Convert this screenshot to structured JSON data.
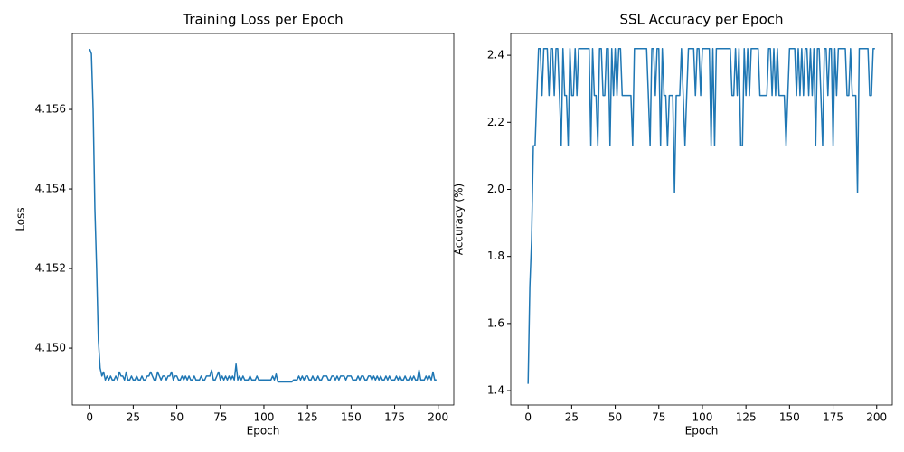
{
  "chart_data": [
    {
      "type": "line",
      "title": "Training Loss per Epoch",
      "x_label": "Epoch",
      "y_label": "Loss",
      "x": [
        0,
        1,
        2,
        3,
        4,
        5,
        6,
        7,
        8,
        9,
        10,
        11,
        12,
        13,
        14,
        15,
        16,
        17,
        18,
        19,
        20,
        21,
        22,
        23,
        24,
        25,
        26,
        27,
        28,
        29,
        30,
        31,
        32,
        33,
        34,
        35,
        36,
        37,
        38,
        39,
        40,
        41,
        42,
        43,
        44,
        45,
        46,
        47,
        48,
        49,
        50,
        51,
        52,
        53,
        54,
        55,
        56,
        57,
        58,
        59,
        60,
        61,
        62,
        63,
        64,
        65,
        66,
        67,
        68,
        69,
        70,
        71,
        72,
        73,
        74,
        75,
        76,
        77,
        78,
        79,
        80,
        81,
        82,
        83,
        84,
        85,
        86,
        87,
        88,
        89,
        90,
        91,
        92,
        93,
        94,
        95,
        96,
        97,
        98,
        99,
        100,
        101,
        102,
        103,
        104,
        105,
        106,
        107,
        108,
        109,
        110,
        111,
        112,
        113,
        114,
        115,
        116,
        117,
        118,
        119,
        120,
        121,
        122,
        123,
        124,
        125,
        126,
        127,
        128,
        129,
        130,
        131,
        132,
        133,
        134,
        135,
        136,
        137,
        138,
        139,
        140,
        141,
        142,
        143,
        144,
        145,
        146,
        147,
        148,
        149,
        150,
        151,
        152,
        153,
        154,
        155,
        156,
        157,
        158,
        159,
        160,
        161,
        162,
        163,
        164,
        165,
        166,
        167,
        168,
        169,
        170,
        171,
        172,
        173,
        174,
        175,
        176,
        177,
        178,
        179,
        180,
        181,
        182,
        183,
        184,
        185,
        186,
        187,
        188,
        189,
        190,
        191,
        192,
        193,
        194,
        195,
        196,
        197,
        198,
        199
      ],
      "series": [
        {
          "name": "Loss",
          "color": "#1f77b4",
          "values": [
            4.15752,
            4.1574,
            4.156,
            4.1535,
            4.152,
            4.1502,
            4.1495,
            4.1493,
            4.1494,
            4.1492,
            4.1493,
            4.1492,
            4.1493,
            4.1492,
            4.1492,
            4.1493,
            4.1492,
            4.1494,
            4.1493,
            4.1493,
            4.1492,
            4.1494,
            4.1492,
            4.1492,
            4.1493,
            4.1492,
            4.1492,
            4.1493,
            4.1492,
            4.1492,
            4.1493,
            4.1492,
            4.1492,
            4.1493,
            4.1493,
            4.1494,
            4.1493,
            4.1492,
            4.1492,
            4.1494,
            4.1493,
            4.1492,
            4.1493,
            4.1493,
            4.1492,
            4.1493,
            4.1493,
            4.1494,
            4.1492,
            4.1493,
            4.1493,
            4.1492,
            4.1492,
            4.1493,
            4.1492,
            4.1493,
            4.1492,
            4.1493,
            4.1492,
            4.1492,
            4.1493,
            4.1492,
            4.1492,
            4.1492,
            4.1493,
            4.1492,
            4.1492,
            4.1493,
            4.1493,
            4.1493,
            4.14945,
            4.1492,
            4.1492,
            4.1493,
            4.1494,
            4.1492,
            4.1493,
            4.1492,
            4.1493,
            4.1492,
            4.1493,
            4.1492,
            4.1493,
            4.1492,
            4.1496,
            4.1492,
            4.1493,
            4.1492,
            4.1493,
            4.1492,
            4.1492,
            4.1492,
            4.1493,
            4.1492,
            4.1492,
            4.1492,
            4.1493,
            4.1492,
            4.1492,
            4.1492,
            4.1492,
            4.1492,
            4.1492,
            4.1492,
            4.1492,
            4.1493,
            4.1492,
            4.14935,
            4.14915,
            4.14915,
            4.14915,
            4.14915,
            4.14915,
            4.14915,
            4.14915,
            4.14915,
            4.14915,
            4.1492,
            4.1492,
            4.1492,
            4.1493,
            4.1492,
            4.1493,
            4.1492,
            4.1493,
            4.1493,
            4.1492,
            4.1492,
            4.1493,
            4.1492,
            4.1492,
            4.1493,
            4.1492,
            4.1492,
            4.1493,
            4.1493,
            4.1493,
            4.1492,
            4.1492,
            4.1493,
            4.1493,
            4.1492,
            4.1493,
            4.1492,
            4.1493,
            4.1493,
            4.1493,
            4.1492,
            4.1493,
            4.1493,
            4.1493,
            4.1492,
            4.1492,
            4.1492,
            4.1493,
            4.1492,
            4.1493,
            4.1493,
            4.1492,
            4.1492,
            4.1493,
            4.1493,
            4.1492,
            4.1493,
            4.1492,
            4.1493,
            4.1492,
            4.1493,
            4.1492,
            4.1492,
            4.1493,
            4.1492,
            4.1493,
            4.1492,
            4.1492,
            4.1492,
            4.1493,
            4.1492,
            4.1493,
            4.1492,
            4.1492,
            4.1493,
            4.1492,
            4.1492,
            4.1493,
            4.1492,
            4.1493,
            4.1492,
            4.1492,
            4.14945,
            4.1492,
            4.1492,
            4.1492,
            4.1493,
            4.1492,
            4.1493,
            4.1492,
            4.1494,
            4.1492,
            4.1492
          ]
        }
      ],
      "xlim": [
        -9.95,
        208.95
      ],
      "xticks": [
        0,
        25,
        50,
        75,
        100,
        125,
        150,
        175,
        200
      ],
      "ylim": [
        4.14857,
        4.15791
      ],
      "yticks": [
        {
          "value": 4.15,
          "label": "4.150"
        },
        4.152,
        4.154,
        4.156
      ],
      "grid": false
    },
    {
      "type": "line",
      "title": "SSL Accuracy per Epoch",
      "x_label": "Epoch",
      "y_label": "Accuracy (%)",
      "x": [
        0,
        1,
        2,
        3,
        4,
        5,
        6,
        7,
        8,
        9,
        10,
        11,
        12,
        13,
        14,
        15,
        16,
        17,
        18,
        19,
        20,
        21,
        22,
        23,
        24,
        25,
        26,
        27,
        28,
        29,
        30,
        31,
        32,
        33,
        34,
        35,
        36,
        37,
        38,
        39,
        40,
        41,
        42,
        43,
        44,
        45,
        46,
        47,
        48,
        49,
        50,
        51,
        52,
        53,
        54,
        55,
        56,
        57,
        58,
        59,
        60,
        61,
        62,
        63,
        64,
        65,
        66,
        67,
        68,
        69,
        70,
        71,
        72,
        73,
        74,
        75,
        76,
        77,
        78,
        79,
        80,
        81,
        82,
        83,
        84,
        85,
        86,
        87,
        88,
        89,
        90,
        91,
        92,
        93,
        94,
        95,
        96,
        97,
        98,
        99,
        100,
        101,
        102,
        103,
        104,
        105,
        106,
        107,
        108,
        109,
        110,
        111,
        112,
        113,
        114,
        115,
        116,
        117,
        118,
        119,
        120,
        121,
        122,
        123,
        124,
        125,
        126,
        127,
        128,
        129,
        130,
        131,
        132,
        133,
        134,
        135,
        136,
        137,
        138,
        139,
        140,
        141,
        142,
        143,
        144,
        145,
        146,
        147,
        148,
        149,
        150,
        151,
        152,
        153,
        154,
        155,
        156,
        157,
        158,
        159,
        160,
        161,
        162,
        163,
        164,
        165,
        166,
        167,
        168,
        169,
        170,
        171,
        172,
        173,
        174,
        175,
        176,
        177,
        178,
        179,
        180,
        181,
        182,
        183,
        184,
        185,
        186,
        187,
        188,
        189,
        190,
        191,
        192,
        193,
        194,
        195,
        196,
        197,
        198,
        199
      ],
      "series": [
        {
          "name": "Accuracy",
          "color": "#1f77b4",
          "values": [
            1.42,
            1.71,
            1.85,
            2.13,
            2.13,
            2.28,
            2.42,
            2.42,
            2.28,
            2.42,
            2.42,
            2.42,
            2.28,
            2.42,
            2.42,
            2.28,
            2.42,
            2.42,
            2.28,
            2.13,
            2.42,
            2.28,
            2.28,
            2.13,
            2.42,
            2.28,
            2.28,
            2.42,
            2.28,
            2.42,
            2.42,
            2.42,
            2.42,
            2.42,
            2.42,
            2.42,
            2.13,
            2.42,
            2.28,
            2.28,
            2.13,
            2.42,
            2.42,
            2.28,
            2.28,
            2.42,
            2.42,
            2.13,
            2.42,
            2.28,
            2.42,
            2.28,
            2.42,
            2.42,
            2.28,
            2.28,
            2.28,
            2.28,
            2.28,
            2.28,
            2.13,
            2.42,
            2.42,
            2.42,
            2.42,
            2.42,
            2.42,
            2.42,
            2.42,
            2.28,
            2.13,
            2.42,
            2.42,
            2.28,
            2.42,
            2.42,
            2.13,
            2.42,
            2.28,
            2.28,
            2.13,
            2.28,
            2.28,
            2.28,
            1.99,
            2.28,
            2.28,
            2.28,
            2.42,
            2.28,
            2.13,
            2.28,
            2.42,
            2.42,
            2.42,
            2.42,
            2.28,
            2.42,
            2.42,
            2.28,
            2.42,
            2.42,
            2.42,
            2.42,
            2.42,
            2.13,
            2.42,
            2.13,
            2.42,
            2.42,
            2.42,
            2.42,
            2.42,
            2.42,
            2.42,
            2.42,
            2.42,
            2.28,
            2.28,
            2.42,
            2.28,
            2.42,
            2.13,
            2.13,
            2.42,
            2.28,
            2.42,
            2.28,
            2.42,
            2.42,
            2.42,
            2.42,
            2.42,
            2.28,
            2.28,
            2.28,
            2.28,
            2.28,
            2.42,
            2.42,
            2.28,
            2.42,
            2.28,
            2.42,
            2.28,
            2.28,
            2.28,
            2.28,
            2.13,
            2.28,
            2.42,
            2.42,
            2.42,
            2.42,
            2.28,
            2.42,
            2.28,
            2.42,
            2.28,
            2.42,
            2.42,
            2.28,
            2.42,
            2.28,
            2.42,
            2.13,
            2.42,
            2.42,
            2.28,
            2.13,
            2.42,
            2.42,
            2.28,
            2.42,
            2.42,
            2.13,
            2.42,
            2.28,
            2.42,
            2.42,
            2.42,
            2.42,
            2.42,
            2.28,
            2.28,
            2.42,
            2.28,
            2.28,
            2.28,
            1.99,
            2.42,
            2.42,
            2.42,
            2.42,
            2.42,
            2.42,
            2.28,
            2.28,
            2.42,
            2.42
          ]
        }
      ],
      "xlim": [
        -9.95,
        208.95
      ],
      "xticks": [
        0,
        25,
        50,
        75,
        100,
        125,
        150,
        175,
        200
      ],
      "ylim": [
        1.357,
        2.465
      ],
      "yticks": [
        1.4,
        1.6,
        1.8,
        {
          "value": 2.0,
          "label": "2.0"
        },
        2.2,
        2.4
      ],
      "grid": false
    }
  ]
}
